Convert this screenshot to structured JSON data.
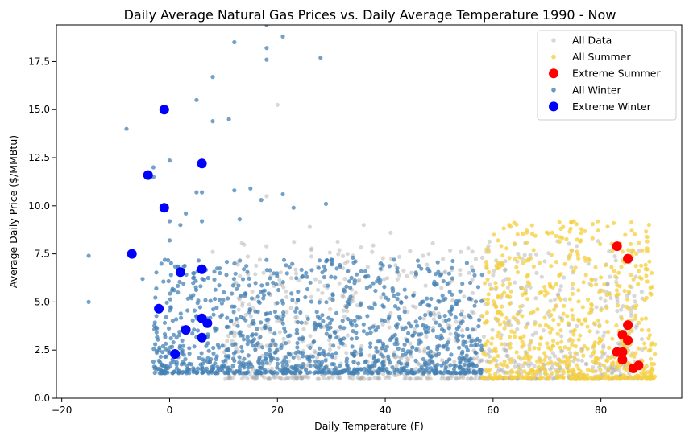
{
  "chart_data": {
    "type": "scatter",
    "title": "Daily Average Natural Gas Prices vs. Daily Average Temperature 1990 - Now",
    "xlabel": "Daily Temperature (F)",
    "ylabel": "Average Daily Price ($/MMBtu)",
    "xlim": [
      -21,
      95
    ],
    "ylim": [
      0,
      19.4
    ],
    "xticks": [
      -20,
      0,
      20,
      40,
      60,
      80
    ],
    "yticks": [
      0.0,
      2.5,
      5.0,
      7.5,
      10.0,
      12.5,
      15.0,
      17.5
    ],
    "xtick_labels": [
      "−20",
      "0",
      "20",
      "40",
      "60",
      "80"
    ],
    "ytick_labels": [
      "0.0",
      "2.5",
      "5.0",
      "7.5",
      "10.0",
      "12.5",
      "15.0",
      "17.5"
    ],
    "legend_position": "upper right",
    "series": [
      {
        "name": "All Data",
        "color": "#a9a9a9",
        "marker": "small-circle",
        "cloud": {
          "x_range": [
            10,
            88
          ],
          "y_range": [
            1.0,
            8.2
          ],
          "count": 900
        },
        "points": [
          [
            20,
            15.25
          ],
          [
            18,
            10.5
          ],
          [
            8,
            7.6
          ],
          [
            33,
            7.1
          ],
          [
            41,
            8.6
          ],
          [
            47,
            7.4
          ],
          [
            54,
            7.6
          ],
          [
            58,
            7.3
          ],
          [
            60,
            6.4
          ],
          [
            64,
            8.0
          ],
          [
            36,
            9.0
          ],
          [
            26,
            8.9
          ]
        ]
      },
      {
        "name": "All Summer",
        "color": "#f5cf3f",
        "marker": "small-circle",
        "cloud": {
          "x_range": [
            58,
            90
          ],
          "y_range": [
            1.0,
            9.2
          ],
          "count": 650
        },
        "points": [
          [
            63,
            9.0
          ],
          [
            75,
            9.2
          ],
          [
            73,
            8.9
          ],
          [
            89,
            7.1
          ],
          [
            90,
            2.8
          ],
          [
            90,
            2.3
          ],
          [
            87,
            6.6
          ],
          [
            71,
            8.6
          ]
        ]
      },
      {
        "name": "Extreme Summer",
        "color": "#ff0000",
        "marker": "large-circle",
        "points": [
          [
            83,
            7.9
          ],
          [
            85,
            7.25
          ],
          [
            85,
            3.8
          ],
          [
            84,
            3.3
          ],
          [
            85,
            3.0
          ],
          [
            83,
            2.4
          ],
          [
            84,
            2.4
          ],
          [
            84,
            2.0
          ],
          [
            86,
            1.55
          ],
          [
            87,
            1.7
          ]
        ]
      },
      {
        "name": "All Winter",
        "color": "#4682b4",
        "marker": "small-circle",
        "cloud": {
          "x_range": [
            -3,
            58
          ],
          "y_range": [
            1.3,
            7.2
          ],
          "count": 1200
        },
        "points": [
          [
            -15,
            7.4
          ],
          [
            -15,
            5.0
          ],
          [
            -8,
            14.0
          ],
          [
            -3,
            12.0
          ],
          [
            -3,
            11.5
          ],
          [
            -5,
            6.2
          ],
          [
            -3,
            1.9
          ],
          [
            0,
            12.35
          ],
          [
            0,
            9.2
          ],
          [
            0,
            8.2
          ],
          [
            5,
            15.5
          ],
          [
            8,
            16.7
          ],
          [
            8,
            14.4
          ],
          [
            11,
            14.5
          ],
          [
            12,
            18.5
          ],
          [
            18,
            19.4
          ],
          [
            18,
            18.2
          ],
          [
            18,
            17.6
          ],
          [
            21,
            18.8
          ],
          [
            28,
            17.7
          ],
          [
            12,
            10.8
          ],
          [
            15,
            10.9
          ],
          [
            21,
            10.6
          ],
          [
            17,
            10.3
          ],
          [
            29,
            10.1
          ],
          [
            23,
            9.9
          ],
          [
            2,
            9.0
          ],
          [
            5,
            10.7
          ],
          [
            6,
            10.7
          ],
          [
            3,
            9.6
          ],
          [
            6,
            9.2
          ],
          [
            13,
            9.3
          ],
          [
            33,
            5.0
          ],
          [
            34,
            7.3
          ],
          [
            30,
            7.2
          ]
        ]
      },
      {
        "name": "Extreme Winter",
        "color": "#0000ff",
        "marker": "large-circle",
        "points": [
          [
            -1,
            15.0
          ],
          [
            -4,
            11.6
          ],
          [
            6,
            12.2
          ],
          [
            -1,
            9.9
          ],
          [
            -7,
            7.5
          ],
          [
            2,
            6.55
          ],
          [
            6,
            6.7
          ],
          [
            -2,
            4.65
          ],
          [
            6,
            4.15
          ],
          [
            7,
            3.9
          ],
          [
            3,
            3.55
          ],
          [
            6,
            3.15
          ],
          [
            1,
            2.3
          ]
        ]
      }
    ]
  }
}
